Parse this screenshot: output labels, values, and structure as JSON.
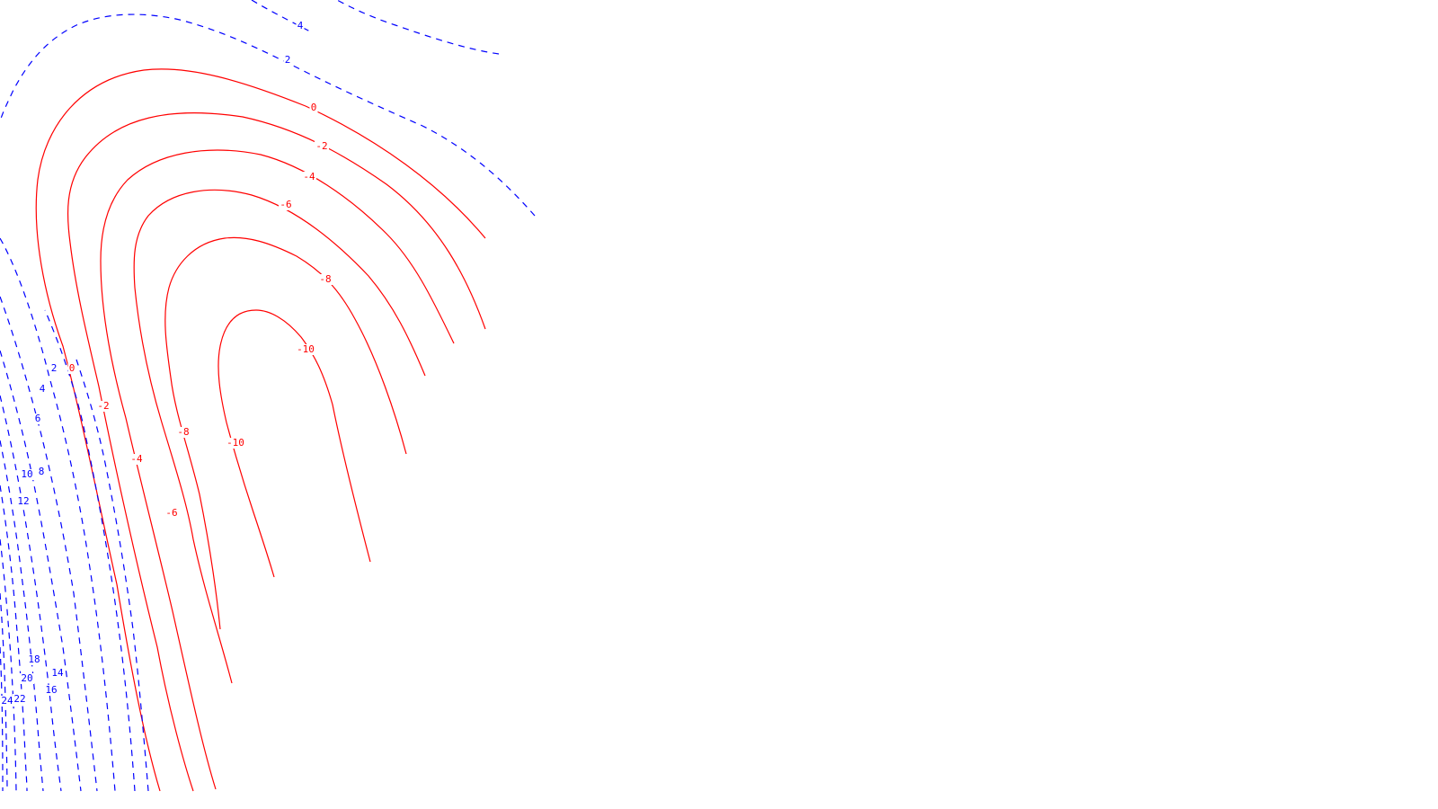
{
  "chart_data": {
    "type": "contour",
    "title": "",
    "xlabel": "",
    "ylabel": "",
    "grid": false,
    "legend": "none",
    "colors": {
      "negative": "#ff0000",
      "positive": "#0000ff"
    },
    "negative_levels": {
      "style": "solid",
      "color": "red",
      "labels": [
        "0",
        "-2",
        "-4",
        "-6",
        "-8",
        "-10"
      ]
    },
    "positive_levels": {
      "style": "dashed",
      "color": "blue",
      "labels": [
        "2",
        "4",
        "6",
        "8",
        "10",
        "12",
        "14",
        "16",
        "18",
        "20",
        "22",
        "24"
      ]
    },
    "contour_labels": [
      "4",
      "2",
      "0",
      "-2",
      "-4",
      "-6",
      "-8",
      "-10",
      "2",
      "0",
      "4",
      "-2",
      "6",
      "-8",
      "-10",
      "-4",
      "10",
      "8",
      "12",
      "-6",
      "18",
      "14",
      "20",
      "16",
      "24",
      "22"
    ]
  }
}
